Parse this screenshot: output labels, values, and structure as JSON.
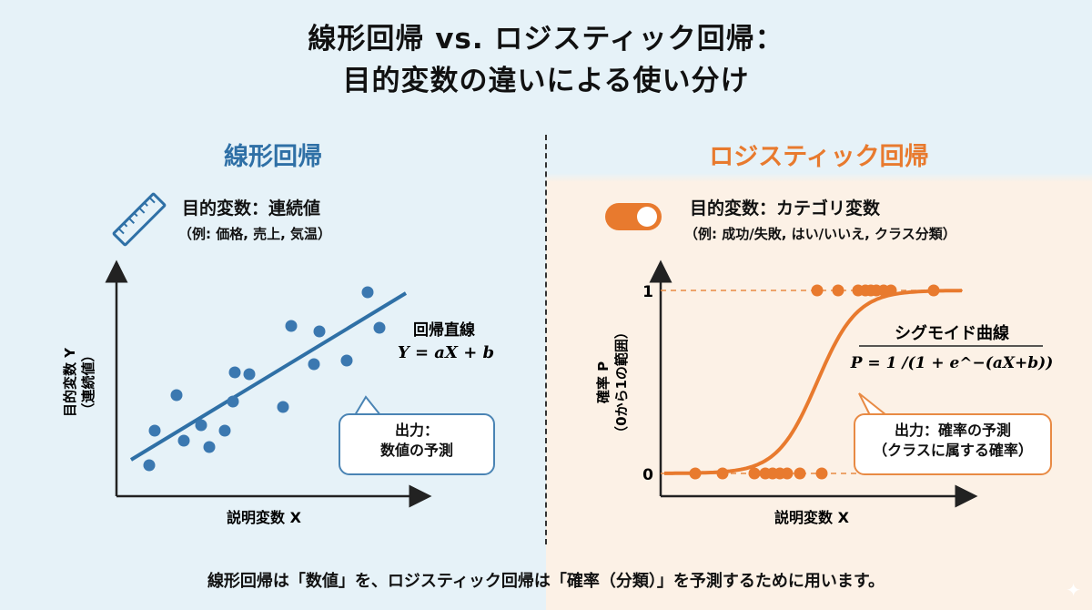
{
  "title": {
    "line1": "線形回帰 vs. ロジスティック回帰：",
    "line2": "目的変数の違いによる使い分け"
  },
  "linear": {
    "heading": "線形回帰",
    "target_label": "目的変数：連続値",
    "target_examples": "（例: 価格, 売上, 気温）",
    "icon": "ruler-icon",
    "line_label": "回帰直線",
    "equation": "Y = aX + b",
    "y_axis_label": "目的変数 Y",
    "y_axis_sub": "（連続値）",
    "x_axis_label": "説明変数 X",
    "callout_line1": "出力：",
    "callout_line2": "数値の予測"
  },
  "logistic": {
    "heading": "ロジスティック回帰",
    "target_label": "目的変数：カテゴリ変数",
    "target_examples": "（例: 成功/失敗, はい/いいえ, クラス分類）",
    "icon": "toggle-icon",
    "curve_label": "シグモイド曲線",
    "equation": "P = 1 /(1 + e^−(aX+b))",
    "y_axis_label": "確率 P",
    "y_axis_sub": "（0から1の範囲）",
    "x_axis_label": "説明変数 X",
    "tick_1": "1",
    "tick_0": "0",
    "callout_line1": "出力：確率の予測",
    "callout_line2": "（クラスに属する確率）"
  },
  "footer": "線形回帰は「数値」を、ロジスティック回帰は「確率（分類）」を予測するために用います。",
  "colors": {
    "blue": "#2f70a6",
    "orange": "#e87a2e",
    "left_bg": "#e6f2f8",
    "right_bg": "#fcf1e6"
  }
}
